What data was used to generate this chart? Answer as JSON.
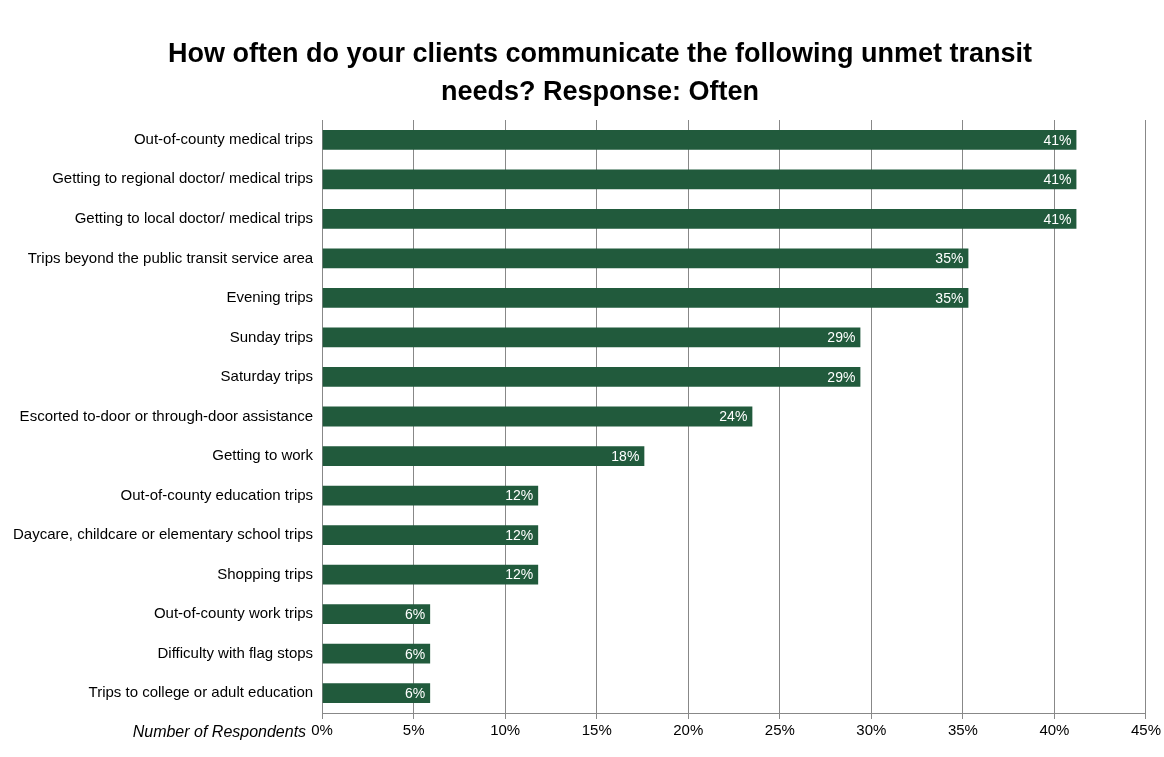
{
  "chart_data": {
    "type": "bar",
    "orientation": "horizontal",
    "title": "How often do your clients communicate the following unmet transit needs?  Response: Often",
    "xlabel": "Number of Respondents",
    "categories": [
      "Out-of-county medical trips",
      "Getting to regional doctor/ medical trips",
      "Getting to local doctor/ medical trips",
      "Trips beyond the public transit service area",
      "Evening trips",
      "Sunday trips",
      "Saturday trips",
      "Escorted to-door or through-door assistance",
      "Getting to work",
      "Out-of-county education trips",
      "Daycare, childcare or elementary school trips",
      "Shopping trips",
      "Out-of-county work trips",
      "Difficulty with flag stops",
      "Trips to college or adult education"
    ],
    "values": [
      41.2,
      41.2,
      41.2,
      35.3,
      35.3,
      29.4,
      29.4,
      23.5,
      17.6,
      11.8,
      11.8,
      11.8,
      5.9,
      5.9,
      5.9
    ],
    "value_labels": [
      "41%",
      "41%",
      "41%",
      "35%",
      "35%",
      "29%",
      "29%",
      "24%",
      "18%",
      "12%",
      "12%",
      "12%",
      "6%",
      "6%",
      "6%"
    ],
    "color": "#215a3c",
    "xlim": [
      0,
      45
    ],
    "xticks": [
      {
        "value": 0,
        "label": "0%"
      },
      {
        "value": 5,
        "label": "5%"
      },
      {
        "value": 10,
        "label": "10%"
      },
      {
        "value": 15,
        "label": "15%"
      },
      {
        "value": 20,
        "label": "20%"
      },
      {
        "value": 25,
        "label": "25%"
      },
      {
        "value": 30,
        "label": "30%"
      },
      {
        "value": 35,
        "label": "35%"
      },
      {
        "value": 40,
        "label": "40%"
      },
      {
        "value": 45,
        "label": "45%"
      }
    ],
    "grid": "x",
    "legend": false
  }
}
